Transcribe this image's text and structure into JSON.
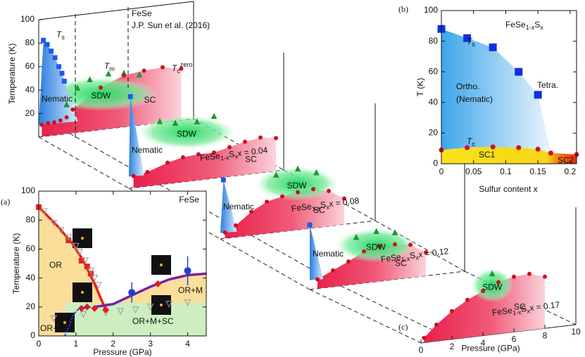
{
  "chart_data": [
    {
      "type": "scatter",
      "label": "(a)",
      "title": "FeSe",
      "xlabel": "Pressure (GPa)",
      "ylabel": "Temperature (K)",
      "xlim": [
        0,
        4.5
      ],
      "ylim": [
        0,
        100
      ],
      "xticks": [
        0,
        1,
        2,
        3,
        4
      ],
      "yticks": [
        0,
        20,
        40,
        60,
        80,
        100
      ],
      "series": [
        {
          "style": "line",
          "color": "#e8201a",
          "x": [
            0,
            0.5,
            0.9,
            1.2,
            1.5,
            1.8
          ],
          "values": [
            89,
            76,
            64,
            52,
            36,
            18
          ]
        },
        {
          "style": "square",
          "color": "#e8201a",
          "x": [
            0,
            0.8,
            1.15,
            1.3,
            1.4
          ],
          "values": [
            89,
            66,
            52,
            48,
            43
          ]
        },
        {
          "style": "triangle-open",
          "color": "#9a9a9a",
          "x": [
            0.15,
            0.4,
            0.6,
            0.8,
            1.0,
            1.1,
            1.25,
            1.4,
            1.5,
            1.6,
            0.4,
            1.2,
            1.8,
            2.2,
            2.6,
            3.0,
            3.5,
            4.0
          ],
          "values": [
            86,
            78,
            73,
            68,
            62,
            58,
            52,
            45,
            40,
            35,
            12,
            15,
            16,
            17,
            18,
            20,
            22,
            23
          ]
        },
        {
          "style": "line",
          "color": "#7b1fa2",
          "x": [
            1.5,
            2,
            2.5,
            3,
            3.5,
            4,
            4.5
          ],
          "values": [
            20,
            22,
            28,
            34,
            39,
            42,
            43
          ]
        },
        {
          "style": "diamond",
          "color": "#e8201a",
          "x": [
            1.15,
            1.3,
            1.5,
            1.8,
            3.2
          ],
          "values": [
            19,
            20,
            19,
            18,
            36
          ]
        },
        {
          "style": "circle",
          "color": "#2040d0",
          "x": [
            2.5,
            4
          ],
          "values": [
            30,
            45
          ],
          "errors": [
            7,
            10
          ]
        },
        {
          "style": "dashed",
          "color": "#2040d0",
          "x": [
            0.7,
            0.8,
            0.9,
            1,
            1.1,
            1.4
          ],
          "values": [
            0,
            6,
            13,
            17,
            19,
            20
          ]
        }
      ],
      "annotations": [
        "OR",
        "OR+M",
        "OR+M+SC",
        "OR+SC"
      ]
    },
    {
      "type": "scatter",
      "label": "(b)",
      "title": [
        "FeSe",
        "1-x",
        "S",
        "x"
      ],
      "xlabel": "Sulfur content x",
      "ylabel": "T (K)",
      "xlim": [
        0,
        0.21
      ],
      "ylim": [
        0,
        100
      ],
      "xticks": [
        0,
        0.05,
        0.1,
        0.15,
        0.2
      ],
      "yticks": [
        0,
        20,
        40,
        60,
        80,
        100
      ],
      "series": [
        {
          "name": "T",
          "subscript": "s",
          "style": "square",
          "color": "#1030e0",
          "x": [
            0,
            0.04,
            0.08,
            0.12,
            0.15
          ],
          "values": [
            88,
            82,
            76,
            60,
            45
          ]
        },
        {
          "name": "T",
          "subscript": "c",
          "style": "circle",
          "color": "#d01020",
          "x": [
            0,
            0.04,
            0.08,
            0.12,
            0.15,
            0.17,
            0.21
          ],
          "values": [
            9,
            10.5,
            11,
            10.5,
            9.5,
            7,
            6
          ]
        }
      ],
      "annotations": [
        "Ortho.",
        "(Nematic)",
        "Tetra.",
        "SC1",
        "SC2"
      ]
    },
    {
      "type": "phase-stack",
      "label": "(c)",
      "xlabel": "Pressure (GPa)",
      "ylabel": "Temperature (K)",
      "xlim": [
        0,
        10
      ],
      "ylim": [
        0,
        100
      ],
      "xticks": [
        0,
        2,
        4,
        6,
        8,
        10
      ],
      "yticks": [
        20,
        40,
        60,
        80,
        100
      ],
      "reference": [
        "FeSe",
        "J.P. Sun et al. (2016)"
      ],
      "curve_labels": {
        "ts": [
          "T",
          "s"
        ],
        "tm": [
          "T",
          "m"
        ],
        "tc": [
          "T",
          "c",
          "zero"
        ]
      },
      "colors": {
        "ts": "#1a5ce8",
        "tm": "#1a9a2a",
        "tc": "#d0101e"
      },
      "slabs": [
        {
          "regions": [
            "Nematic",
            "SDW",
            "SC"
          ],
          "ts": {
            "x": [
              0.3,
              0.55,
              0.8,
              1.05,
              1.3,
              1.5,
              1.65
            ],
            "values": [
              82,
              78,
              72,
              66,
              58,
              52,
              45
            ]
          },
          "tm": {
            "x": [
              1.8,
              2.5,
              3.3,
              4.5,
              5.5,
              6.5
            ],
            "values": [
              25,
              38,
              44,
              47,
              46,
              43
            ]
          },
          "tc": {
            "x": [
              0.2,
              0.6,
              1,
              1.4,
              1.8,
              2.2,
              4,
              5.5,
              6.8,
              8,
              9.2
            ],
            "values": [
              10,
              11,
              11,
              12,
              14,
              20,
              36,
              44,
              46,
              47,
              44
            ]
          }
        },
        {
          "regions": [
            "Nematic",
            "SDW",
            "SC"
          ],
          "formula": [
            "FeSe",
            "1-x",
            "S",
            "x"
          ],
          "composition": "x = 0.04",
          "ts": {
            "x": [
              0.1
            ],
            "values": [
              78
            ]
          },
          "tm": {
            "x": [
              2,
              3,
              4.4,
              5.5
            ],
            "values": [
              54,
              51,
              50,
              53
            ]
          },
          "tc": {
            "x": [
              0.3,
              1.2,
              2.5,
              3.5,
              4.5,
              5.5,
              6.5,
              7.5,
              8.5,
              9.5
            ],
            "values": [
              10,
              12,
              18,
              21,
              22,
              22,
              25,
              28,
              30,
              28
            ]
          }
        },
        {
          "regions": [
            "Nematic",
            "SDW",
            "SC"
          ],
          "formula": [
            "FeSe",
            "1-x",
            "S",
            "x"
          ],
          "composition": "x = 0.08",
          "ts": {
            "x": [
              0.2
            ],
            "values": [
              50
            ]
          },
          "tm": {
            "x": [
              3.6,
              5,
              6.2
            ],
            "values": [
              49,
              52,
              47
            ]
          },
          "tc": {
            "x": [
              0.3,
              1,
              2,
              3,
              4,
              5,
              6,
              7,
              8
            ],
            "values": [
              5,
              10,
              20,
              27,
              30,
              32,
              33,
              30,
              22
            ]
          }
        },
        {
          "regions": [
            "Nematic",
            "SDW",
            "SC"
          ],
          "formula": [
            "FeSe",
            "1-x",
            "S",
            "x"
          ],
          "composition": "x = 0.12",
          "ts": {
            "x": [
              0
            ],
            "values": [
              55
            ]
          },
          "tm": {
            "x": [
              3,
              4.3,
              5.5
            ],
            "values": [
              40,
              43,
              40
            ]
          },
          "tc": {
            "x": [
              0.5,
              1.5,
              2.5,
              3.5,
              4.5,
              5.5,
              6.5,
              7.5
            ],
            "values": [
              8,
              14,
              20,
              27,
              30,
              30,
              28,
              20
            ]
          }
        },
        {
          "regions": [
            "SDW",
            "SC"
          ],
          "formula": [
            "FeSe",
            "1-x",
            "S",
            "x"
          ],
          "composition": "x = 0.17",
          "ts": {
            "x": [],
            "values": []
          },
          "tm": {
            "x": [
              4.6
            ],
            "values": [
              52
            ]
          },
          "tc": {
            "x": [
              0.2,
              1,
              2,
              3,
              4,
              5,
              6,
              7,
              8
            ],
            "values": [
              4,
              14,
              24,
              32,
              38,
              44,
              47,
              48,
              44
            ]
          }
        }
      ]
    }
  ]
}
